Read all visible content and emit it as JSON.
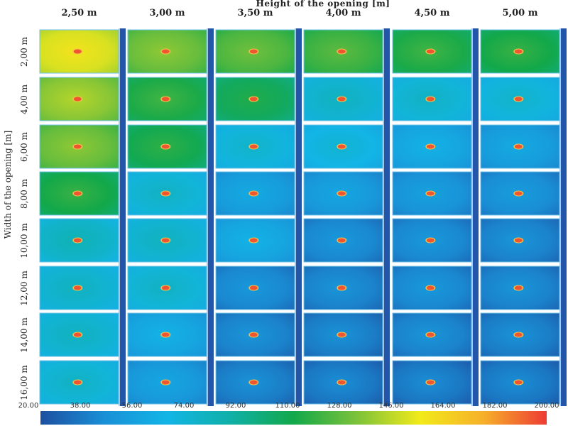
{
  "chart_data": {
    "type": "heatmap",
    "title": "Height of the opening [m]",
    "xlabel": "Height of the opening [m]",
    "ylabel": "Width of the opening [m]",
    "x_categories": [
      "2,50 m",
      "3,00 m",
      "3,50 m",
      "4,00 m",
      "4,50 m",
      "5,00 m"
    ],
    "y_categories": [
      "2,00 m",
      "4,00 m",
      "6,00 m",
      "8,00 m",
      "10,00 m",
      "12,00 m",
      "14,00 m",
      "16,00 m"
    ],
    "colorbar": {
      "ticks": [
        "20.00",
        "38.00",
        "56.00",
        "74.00",
        "92.00",
        "110.00",
        "128.00",
        "146.00",
        "164.00",
        "182.00",
        "200.00"
      ],
      "range": [
        20,
        200
      ],
      "stops": [
        "#1d4fa0",
        "#1a8fd6",
        "#12b5e6",
        "#10b0a8",
        "#12a84a",
        "#7cc23a",
        "#f2ea1a",
        "#f6b02a",
        "#ee3b34"
      ]
    },
    "approx_field_values": [
      [
        150,
        128,
        122,
        118,
        112,
        110
      ],
      [
        135,
        112,
        105,
        72,
        70,
        68
      ],
      [
        128,
        108,
        68,
        65,
        55,
        50
      ],
      [
        110,
        70,
        50,
        48,
        45,
        42
      ],
      [
        75,
        72,
        55,
        40,
        40,
        38
      ],
      [
        72,
        70,
        40,
        38,
        40,
        38
      ],
      [
        72,
        55,
        38,
        36,
        38,
        36
      ],
      [
        70,
        48,
        36,
        34,
        34,
        34
      ]
    ],
    "hotspot_value": 195,
    "legend": "bottom"
  }
}
